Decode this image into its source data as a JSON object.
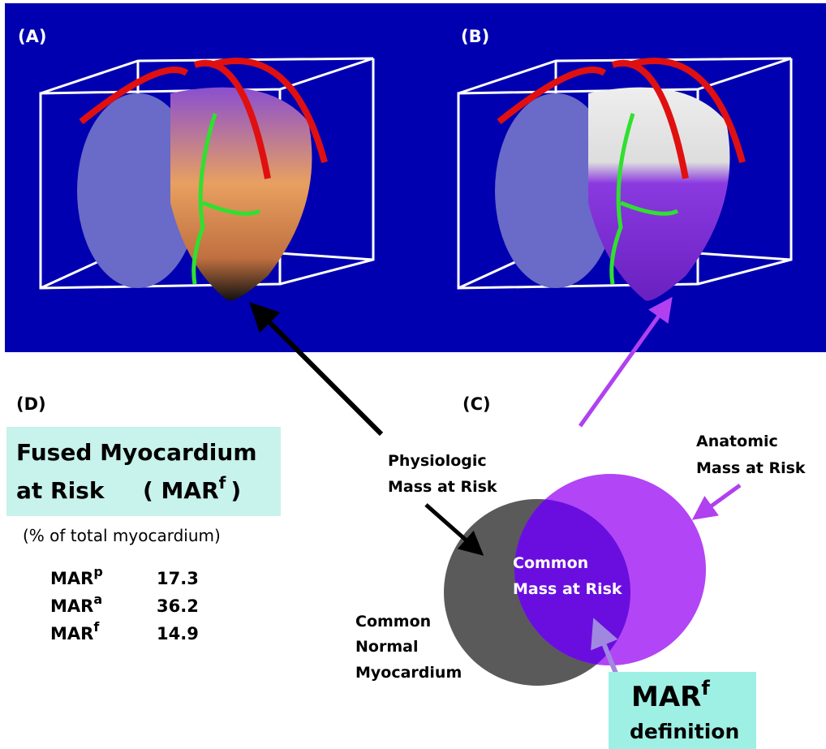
{
  "panels": {
    "a": "(A)",
    "b": "(B)",
    "c": "(C)",
    "d": "(D)"
  },
  "summary": {
    "title_line1": "Fused Myocardium",
    "title_line2": "at Risk",
    "title_abbr_open": "( MAR",
    "title_abbr_sup": "f",
    "title_abbr_close": ")",
    "subtitle": "(% of total myocardium)",
    "rows": [
      {
        "name": "MAR",
        "sup": "p",
        "value": 17.3
      },
      {
        "name": "MAR",
        "sup": "a",
        "value": 36.2
      },
      {
        "name": "MAR",
        "sup": "f",
        "value": 14.9
      }
    ]
  },
  "venn": {
    "physiologic": [
      "Physiologic",
      "Mass at Risk"
    ],
    "anatomic": [
      "Anatomic",
      "Mass at Risk"
    ],
    "common_risk": [
      "Common",
      "Mass at Risk"
    ],
    "common_normal": [
      "Common",
      "Normal",
      "Myocardium"
    ],
    "definition": {
      "name": "MAR",
      "sup": "f",
      "text": "definition"
    }
  }
}
